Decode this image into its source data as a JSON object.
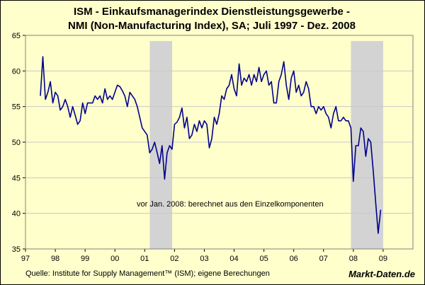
{
  "chart_data": {
    "type": "line",
    "title_line1": "ISM - Einkaufsmanagerindex Dienstleistungsgewerbe -",
    "title_line2": "NMI (Non-Manufacturing Index), SA;  Juli 1997 - Dez. 2008",
    "annotation": "vor Jan. 2008: berechnet aus den Einzelkomponenten",
    "source": "Quelle: Institute for Supply Management™ (ISM); eigene Berechungen",
    "brand": "Markt-Daten.de",
    "xlim": [
      1997,
      2010
    ],
    "ylim": [
      35,
      65
    ],
    "x_ticks": [
      {
        "value": 1997,
        "label": "97"
      },
      {
        "value": 1998,
        "label": "98"
      },
      {
        "value": 1999,
        "label": "99"
      },
      {
        "value": 2000,
        "label": "00"
      },
      {
        "value": 2001,
        "label": "01"
      },
      {
        "value": 2002,
        "label": "02"
      },
      {
        "value": 2003,
        "label": "03"
      },
      {
        "value": 2004,
        "label": "04"
      },
      {
        "value": 2005,
        "label": "05"
      },
      {
        "value": 2006,
        "label": "06"
      },
      {
        "value": 2007,
        "label": "07"
      },
      {
        "value": 2008,
        "label": "08"
      },
      {
        "value": 2009,
        "label": "09"
      }
    ],
    "y_ticks": [
      35,
      40,
      45,
      50,
      55,
      60,
      65
    ],
    "grid": "horizontal",
    "recession_bands": [
      [
        2001.17,
        2001.92
      ],
      [
        2007.92,
        2009.0
      ]
    ],
    "colors": {
      "line": "#00008b",
      "band": "#d3d3d3",
      "background": "#ffffcc",
      "grid": "#c8c8c8"
    },
    "x": [
      1997.5,
      1997.583,
      1997.667,
      1997.75,
      1997.833,
      1997.917,
      1998.0,
      1998.083,
      1998.167,
      1998.25,
      1998.333,
      1998.417,
      1998.5,
      1998.583,
      1998.667,
      1998.75,
      1998.833,
      1998.917,
      1999.0,
      1999.083,
      1999.167,
      1999.25,
      1999.333,
      1999.417,
      1999.5,
      1999.583,
      1999.667,
      1999.75,
      1999.833,
      1999.917,
      2000.0,
      2000.083,
      2000.167,
      2000.25,
      2000.333,
      2000.417,
      2000.5,
      2000.583,
      2000.667,
      2000.75,
      2000.833,
      2000.917,
      2001.0,
      2001.083,
      2001.167,
      2001.25,
      2001.333,
      2001.417,
      2001.5,
      2001.583,
      2001.667,
      2001.75,
      2001.833,
      2001.917,
      2002.0,
      2002.083,
      2002.167,
      2002.25,
      2002.333,
      2002.417,
      2002.5,
      2002.583,
      2002.667,
      2002.75,
      2002.833,
      2002.917,
      2003.0,
      2003.083,
      2003.167,
      2003.25,
      2003.333,
      2003.417,
      2003.5,
      2003.583,
      2003.667,
      2003.75,
      2003.833,
      2003.917,
      2004.0,
      2004.083,
      2004.167,
      2004.25,
      2004.333,
      2004.417,
      2004.5,
      2004.583,
      2004.667,
      2004.75,
      2004.833,
      2004.917,
      2005.0,
      2005.083,
      2005.167,
      2005.25,
      2005.333,
      2005.417,
      2005.5,
      2005.583,
      2005.667,
      2005.75,
      2005.833,
      2005.917,
      2006.0,
      2006.083,
      2006.167,
      2006.25,
      2006.333,
      2006.417,
      2006.5,
      2006.583,
      2006.667,
      2006.75,
      2006.833,
      2006.917,
      2007.0,
      2007.083,
      2007.167,
      2007.25,
      2007.333,
      2007.417,
      2007.5,
      2007.583,
      2007.667,
      2007.75,
      2007.833,
      2007.917,
      2008.0,
      2008.083,
      2008.167,
      2008.25,
      2008.333,
      2008.417,
      2008.5,
      2008.583,
      2008.667,
      2008.75,
      2008.833,
      2008.917
    ],
    "y": [
      56.5,
      62.0,
      56.0,
      57.0,
      58.5,
      55.5,
      57.0,
      56.5,
      54.5,
      55.0,
      56.0,
      55.0,
      53.5,
      55.0,
      53.8,
      52.5,
      53.0,
      55.5,
      54.0,
      55.5,
      55.5,
      55.5,
      56.5,
      56.0,
      56.5,
      55.5,
      57.5,
      56.0,
      56.5,
      56.0,
      57.0,
      58.0,
      57.8,
      57.2,
      56.5,
      55.0,
      57.0,
      56.5,
      56.0,
      55.0,
      53.5,
      52.0,
      51.5,
      51.0,
      48.5,
      49.0,
      50.0,
      48.5,
      47.0,
      49.5,
      44.8,
      48.5,
      49.5,
      49.0,
      52.5,
      52.8,
      53.5,
      54.8,
      52.0,
      53.5,
      50.5,
      51.0,
      52.5,
      51.5,
      53.0,
      52.0,
      53.0,
      52.5,
      49.2,
      50.5,
      53.5,
      52.5,
      54.0,
      56.5,
      56.0,
      57.5,
      58.0,
      59.5,
      57.5,
      56.5,
      61.0,
      58.0,
      59.0,
      58.5,
      59.5,
      58.0,
      59.5,
      58.5,
      60.5,
      58.5,
      59.5,
      60.0,
      58.0,
      58.5,
      55.5,
      55.5,
      58.5,
      59.5,
      61.3,
      58.0,
      56.0,
      59.0,
      60.0,
      57.0,
      58.0,
      56.5,
      57.0,
      58.5,
      57.5,
      55.0,
      55.0,
      54.0,
      55.0,
      54.5,
      55.0,
      54.0,
      53.5,
      52.0,
      54.0,
      55.0,
      53.0,
      53.0,
      53.5,
      53.0,
      53.0,
      52.0,
      44.5,
      49.5,
      49.5,
      52.0,
      51.5,
      48.0,
      50.5,
      50.0,
      46.0,
      41.5,
      37.2,
      40.5
    ]
  }
}
